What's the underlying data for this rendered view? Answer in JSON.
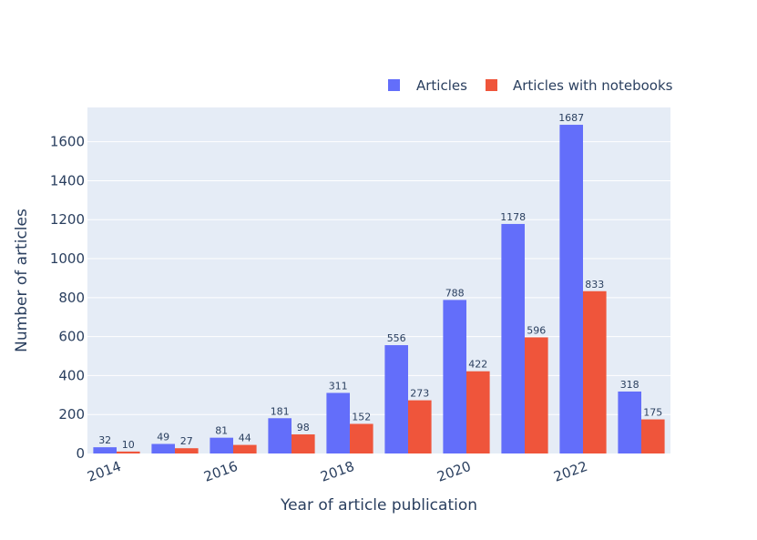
{
  "chart_data": {
    "type": "bar",
    "categories": [
      "2014",
      "2015",
      "2016",
      "2017",
      "2018",
      "2019",
      "2020",
      "2021",
      "2022",
      "2023"
    ],
    "x_tick_labels": [
      "2014",
      "2016",
      "2018",
      "2020",
      "2022"
    ],
    "series": [
      {
        "name": "Articles",
        "color": "#636efa",
        "values": [
          32,
          49,
          81,
          181,
          311,
          556,
          788,
          1178,
          1687,
          318
        ]
      },
      {
        "name": "Articles with notebooks",
        "color": "#ef553b",
        "values": [
          10,
          27,
          44,
          98,
          152,
          273,
          422,
          596,
          833,
          175
        ]
      }
    ],
    "xlabel": "Year of article publication",
    "ylabel": "Number of articles",
    "ylim": [
      0,
      1776
    ],
    "y_ticks": [
      0,
      200,
      400,
      600,
      800,
      1000,
      1200,
      1400,
      1600
    ],
    "grid": true,
    "legend_position": "top-right",
    "plot_background": "#e5ecf6"
  }
}
